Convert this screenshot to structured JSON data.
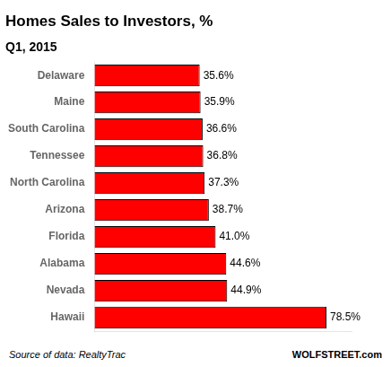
{
  "chart_data": {
    "type": "bar",
    "orientation": "horizontal",
    "title": "Homes Sales to Investors, %",
    "subtitle": "Q1, 2015",
    "categories": [
      "Delaware",
      "Maine",
      "South Carolina",
      "Tennessee",
      "North Carolina",
      "Arizona",
      "Florida",
      "Alabama",
      "Nevada",
      "Hawaii"
    ],
    "values": [
      35.6,
      35.9,
      36.6,
      36.8,
      37.3,
      38.7,
      41.0,
      44.6,
      44.9,
      78.5
    ],
    "value_labels": [
      "35.6%",
      "35.9%",
      "36.6%",
      "36.8%",
      "37.3%",
      "38.7%",
      "41.0%",
      "44.6%",
      "44.9%",
      "78.5%"
    ],
    "data_labels": true,
    "color": "#ff0000",
    "xlim": [
      0,
      87
    ],
    "tick_labels": "y",
    "grid": false,
    "annotations": [
      "Source of data: RealtyTrac",
      "WOLFSTREET.com"
    ]
  }
}
